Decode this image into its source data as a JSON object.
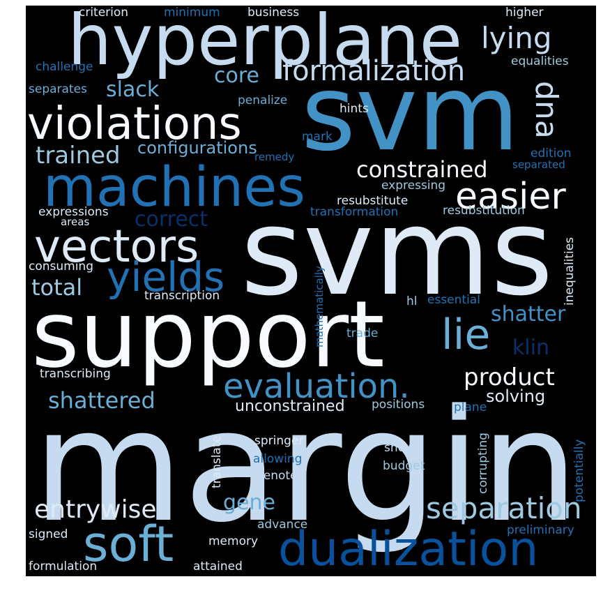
{
  "cloud": {
    "background": "#000000",
    "palette": {
      "white": "#f7fbff",
      "pale": "#deebf7",
      "light": "#c6dbef",
      "sky": "#9ecae1",
      "mid": "#6baed6",
      "blue": "#4292c6",
      "deep": "#2171b5",
      "navy": "#08519c",
      "dark": "#08306b"
    },
    "words": [
      {
        "id": "svm",
        "text": "svm"
      },
      {
        "id": "svms",
        "text": "svms"
      },
      {
        "id": "support",
        "text": "support"
      },
      {
        "id": "margin",
        "text": "margin"
      },
      {
        "id": "hyperplane",
        "text": "hyperplane"
      },
      {
        "id": "machines",
        "text": "machines"
      },
      {
        "id": "violations",
        "text": "violations"
      },
      {
        "id": "vectors",
        "text": "vectors"
      },
      {
        "id": "soft",
        "text": "soft"
      },
      {
        "id": "dualization",
        "text": "dualization"
      },
      {
        "id": "evaluation",
        "text": "evaluation."
      },
      {
        "id": "easier",
        "text": "easier"
      },
      {
        "id": "yields",
        "text": "yields"
      },
      {
        "id": "lie",
        "text": "lie"
      },
      {
        "id": "formalization",
        "text": "formalization"
      },
      {
        "id": "lying",
        "text": "lying"
      },
      {
        "id": "dna",
        "text": "dna"
      },
      {
        "id": "separation",
        "text": "separation"
      },
      {
        "id": "entrywise",
        "text": "entrywise"
      },
      {
        "id": "trained",
        "text": "trained"
      },
      {
        "id": "constrained",
        "text": "constrained"
      },
      {
        "id": "product",
        "text": "product"
      },
      {
        "id": "shattered",
        "text": "shattered"
      },
      {
        "id": "total",
        "text": "total"
      },
      {
        "id": "correct",
        "text": "correct"
      },
      {
        "id": "core",
        "text": "core"
      },
      {
        "id": "slack",
        "text": "slack"
      },
      {
        "id": "shatter",
        "text": "shatter"
      },
      {
        "id": "klin",
        "text": "klin"
      },
      {
        "id": "gene",
        "text": "gene"
      },
      {
        "id": "configurations",
        "text": "configurations"
      },
      {
        "id": "unconstrained",
        "text": "unconstrained"
      },
      {
        "id": "solving",
        "text": "solving"
      },
      {
        "id": "criterion",
        "text": "criterion"
      },
      {
        "id": "minimum",
        "text": "minimum"
      },
      {
        "id": "business",
        "text": "business"
      },
      {
        "id": "higher",
        "text": "higher"
      },
      {
        "id": "challenge",
        "text": "challenge"
      },
      {
        "id": "equalities",
        "text": "equalities"
      },
      {
        "id": "separates",
        "text": "separates"
      },
      {
        "id": "penalize",
        "text": "penalize"
      },
      {
        "id": "hints",
        "text": "hints"
      },
      {
        "id": "mark",
        "text": "mark"
      },
      {
        "id": "edition",
        "text": "edition"
      },
      {
        "id": "remedy",
        "text": "remedy"
      },
      {
        "id": "separated",
        "text": "separated"
      },
      {
        "id": "expressing",
        "text": "expressing"
      },
      {
        "id": "resubstitute",
        "text": "resubstitute"
      },
      {
        "id": "expressions",
        "text": "expressions"
      },
      {
        "id": "transformation",
        "text": "transformation"
      },
      {
        "id": "resubstitution",
        "text": "resubstitution"
      },
      {
        "id": "areas",
        "text": "areas"
      },
      {
        "id": "consuming",
        "text": "consuming"
      },
      {
        "id": "transcription",
        "text": "transcription"
      },
      {
        "id": "hl",
        "text": "hl"
      },
      {
        "id": "essential",
        "text": "essential"
      },
      {
        "id": "trade",
        "text": "trade"
      },
      {
        "id": "transcribing",
        "text": "transcribing"
      },
      {
        "id": "positions",
        "text": "positions"
      },
      {
        "id": "plane",
        "text": "plane"
      },
      {
        "id": "springer",
        "text": "springer"
      },
      {
        "id": "allowing",
        "text": "allowing"
      },
      {
        "id": "shows",
        "text": "shows"
      },
      {
        "id": "budget",
        "text": "budget"
      },
      {
        "id": "denote",
        "text": "denote"
      },
      {
        "id": "advance",
        "text": "advance"
      },
      {
        "id": "preliminary",
        "text": "preliminary"
      },
      {
        "id": "signed",
        "text": "signed"
      },
      {
        "id": "memory",
        "text": "memory"
      },
      {
        "id": "formulation",
        "text": "formulation"
      },
      {
        "id": "attained",
        "text": "attained"
      },
      {
        "id": "mathematically",
        "text": "mathematically"
      },
      {
        "id": "inequalities",
        "text": "inequalities"
      },
      {
        "id": "translate",
        "text": "translate"
      },
      {
        "id": "corrupting",
        "text": "corrupting"
      },
      {
        "id": "potentially",
        "text": "potentially"
      }
    ]
  }
}
